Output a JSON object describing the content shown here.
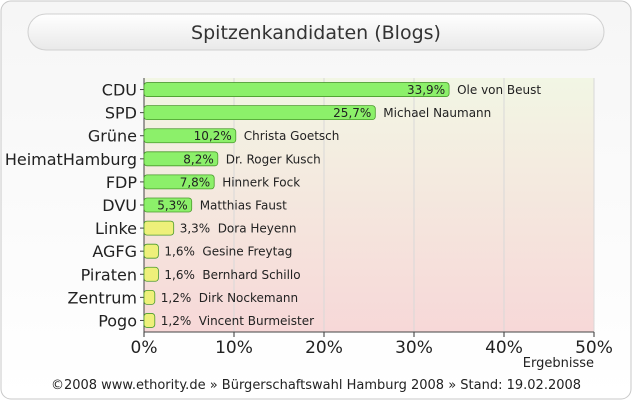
{
  "chart_data": {
    "type": "bar",
    "orientation": "horizontal",
    "title": "Spitzenkandidaten (Blogs)",
    "xlabel": "Ergebnisse",
    "xlim": [
      0,
      50
    ],
    "xticks": [
      "0%",
      "10%",
      "20%",
      "30%",
      "40%",
      "50%"
    ],
    "grid": true,
    "categories": [
      "CDU",
      "SPD",
      "Grüne",
      "HeimatHamburg",
      "FDP",
      "DVU",
      "Linke",
      "AGFG",
      "Piraten",
      "Zentrum",
      "Pogo"
    ],
    "values": [
      33.9,
      25.7,
      10.2,
      8.2,
      7.8,
      5.3,
      3.3,
      1.6,
      1.6,
      1.2,
      1.2
    ],
    "value_labels": [
      "33,9%",
      "25,7%",
      "10,2%",
      "8,2%",
      "7,8%",
      "5,3%",
      "3,3%",
      "1,6%",
      "1,6%",
      "1,2%",
      "1,2%"
    ],
    "candidates": [
      "Ole von Beust",
      "Michael Naumann",
      "Christa Goetsch",
      "Dr. Roger Kusch",
      "Hinnerk Fock",
      "Matthias Faust",
      "Dora Heyenn",
      "Gesine Freytag",
      "Bernhard Schillo",
      "Dirk Nockemann",
      "Vincent Burmeister"
    ],
    "colors": {
      "bar_high": "#8cf06a",
      "bar_low": "#eef07a",
      "bar_stroke": "#4a9a2c",
      "plot_bg_top": "#f2f6e4",
      "plot_bg_bottom": "#f7d8d8",
      "grid": "#d8d8d8"
    }
  },
  "footer": "©2008 www.ethority.de  »  Bürgerschaftswahl Hamburg 2008  »  Stand: 19.02.2008"
}
